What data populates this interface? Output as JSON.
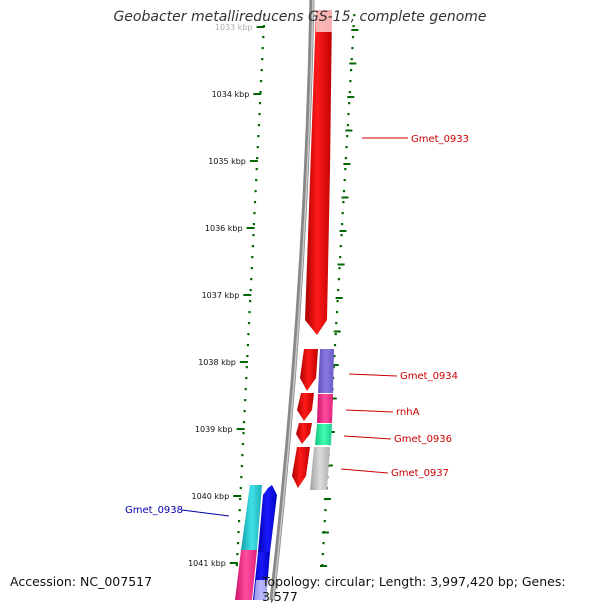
{
  "title": "Geobacter metallireducens GS-15, complete genome",
  "footer": {
    "accession": "Accession: NC_007517",
    "topology": "Topology: circular; Length: 3,997,420 bp; Genes: 3,577"
  },
  "colors": {
    "forward_label": "#cc0000",
    "reverse_label": "#0000aa",
    "tick": "#006600",
    "backbone": "#888888"
  },
  "ticks": [
    {
      "label": "1033 kbp",
      "kbp": 1033
    },
    {
      "label": "1034 kbp",
      "kbp": 1034
    },
    {
      "label": "1035 kbp",
      "kbp": 1035
    },
    {
      "label": "1036 kbp",
      "kbp": 1036
    },
    {
      "label": "1037 kbp",
      "kbp": 1037
    },
    {
      "label": "1038 kbp",
      "kbp": 1038
    },
    {
      "label": "1039 kbp",
      "kbp": 1039
    },
    {
      "label": "1040 kbp",
      "kbp": 1040
    },
    {
      "label": "1041 kbp",
      "kbp": 1041
    }
  ],
  "genes": [
    {
      "name": "Gmet_0933",
      "strand": "+"
    },
    {
      "name": "Gmet_0934",
      "strand": "+"
    },
    {
      "name": "rnhA",
      "strand": "+"
    },
    {
      "name": "Gmet_0936",
      "strand": "+"
    },
    {
      "name": "Gmet_0937",
      "strand": "+"
    },
    {
      "name": "Gmet_0938",
      "strand": "-"
    }
  ]
}
